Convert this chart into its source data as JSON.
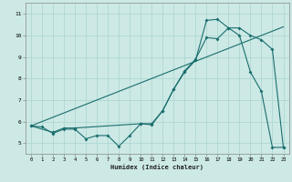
{
  "xlabel": "Humidex (Indice chaleur)",
  "xlim": [
    -0.5,
    23.5
  ],
  "ylim": [
    4.5,
    11.5
  ],
  "xticks": [
    0,
    1,
    2,
    3,
    4,
    5,
    6,
    7,
    8,
    9,
    10,
    11,
    12,
    13,
    14,
    15,
    16,
    17,
    18,
    19,
    20,
    21,
    22,
    23
  ],
  "yticks": [
    5,
    6,
    7,
    8,
    9,
    10,
    11
  ],
  "bg_color": "#cce9e5",
  "grid_color": "#aad4cf",
  "line_color": "#1a6e6e",
  "c1x": [
    0,
    1,
    2,
    3,
    4,
    5,
    6,
    7,
    8,
    9,
    10,
    11,
    12,
    13,
    14,
    15,
    16,
    17,
    18,
    19,
    20,
    21,
    22,
    23
  ],
  "c1y": [
    5.8,
    5.75,
    5.45,
    5.65,
    5.65,
    5.2,
    5.35,
    5.35,
    4.85,
    5.35,
    5.9,
    5.85,
    6.5,
    7.5,
    8.3,
    8.85,
    10.7,
    10.75,
    10.35,
    10.0,
    8.3,
    7.4,
    4.8,
    4.8
  ],
  "c2x": [
    0,
    2,
    3,
    4,
    10,
    11,
    12,
    13,
    14,
    15,
    16,
    17,
    18,
    19,
    20,
    21,
    22,
    23
  ],
  "c2y": [
    5.8,
    5.5,
    5.7,
    5.7,
    5.9,
    5.9,
    6.5,
    7.5,
    8.35,
    8.9,
    9.9,
    9.85,
    10.35,
    10.35,
    10.0,
    9.8,
    9.35,
    4.8
  ],
  "c3x": [
    0,
    23
  ],
  "c3y": [
    5.8,
    10.4
  ],
  "figsize": [
    3.2,
    2.0
  ],
  "dpi": 100
}
